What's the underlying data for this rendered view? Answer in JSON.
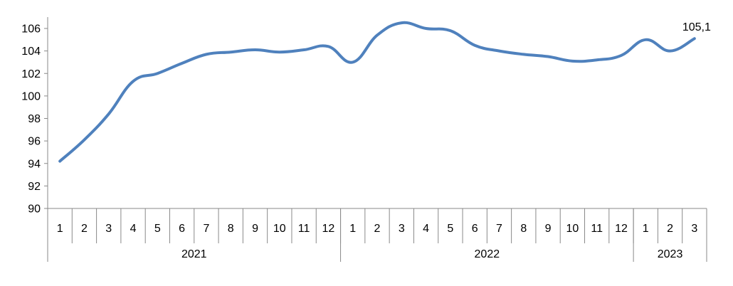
{
  "chart_data": {
    "type": "line",
    "title": "",
    "xlabel": "",
    "ylabel": "",
    "ylim": [
      90,
      106
    ],
    "yticks": [
      90,
      92,
      94,
      96,
      98,
      100,
      102,
      104,
      106
    ],
    "grid": false,
    "legend": "none",
    "line_color": "#4F81BD",
    "categories": [
      "1",
      "2",
      "3",
      "4",
      "5",
      "6",
      "7",
      "8",
      "9",
      "10",
      "11",
      "12",
      "1",
      "2",
      "3",
      "4",
      "5",
      "6",
      "7",
      "8",
      "9",
      "10",
      "11",
      "12",
      "1",
      "2",
      "3"
    ],
    "year_groups": [
      {
        "label": "2021",
        "months": 12
      },
      {
        "label": "2022",
        "months": 12
      },
      {
        "label": "2023",
        "months": 3
      }
    ],
    "series": [
      {
        "values": [
          94.2,
          96.1,
          98.4,
          101.3,
          102.0,
          102.9,
          103.7,
          103.9,
          104.1,
          103.9,
          104.1,
          104.4,
          103.0,
          105.4,
          106.5,
          106.0,
          105.8,
          104.5,
          104.0,
          103.7,
          103.5,
          103.1,
          103.2,
          103.6,
          105.0,
          104.0,
          105.1
        ]
      }
    ],
    "annotations": [
      {
        "index": 26,
        "text": "105,1"
      }
    ]
  }
}
